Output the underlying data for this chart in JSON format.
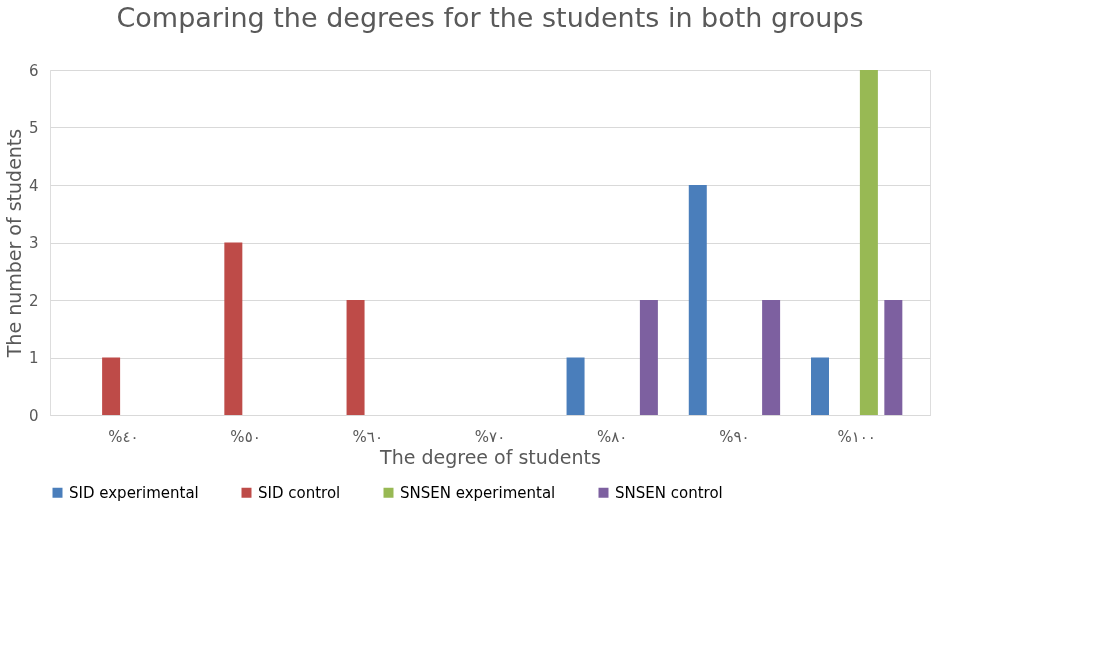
{
  "chart_data": {
    "type": "bar",
    "title": "Comparing the degrees for the students in both groups",
    "xlabel": "The degree of students",
    "ylabel": "The number of students",
    "categories": [
      "%٤٠",
      "%٥٠",
      "%٦٠",
      "%٧٠",
      "%٨٠",
      "%٩٠",
      "%١٠٠"
    ],
    "series": [
      {
        "name": "SID experimental",
        "color": "#4a7ebb",
        "values": [
          0,
          0,
          0,
          0,
          1,
          4,
          1
        ]
      },
      {
        "name": "SID control",
        "color": "#be4b48",
        "values": [
          1,
          3,
          2,
          0,
          null,
          null,
          null
        ]
      },
      {
        "name": "SNSEN experimental",
        "color": "#98b954",
        "values": [
          0,
          0,
          0,
          0,
          null,
          0,
          6
        ]
      },
      {
        "name": "SNSEN control",
        "color": "#7d60a0",
        "values": [
          null,
          null,
          null,
          null,
          2,
          2,
          2
        ]
      }
    ],
    "ylim": [
      0,
      6
    ],
    "yticks": [
      0,
      1,
      2,
      3,
      4,
      5,
      6
    ],
    "grid": "y",
    "legend": "bottom"
  }
}
